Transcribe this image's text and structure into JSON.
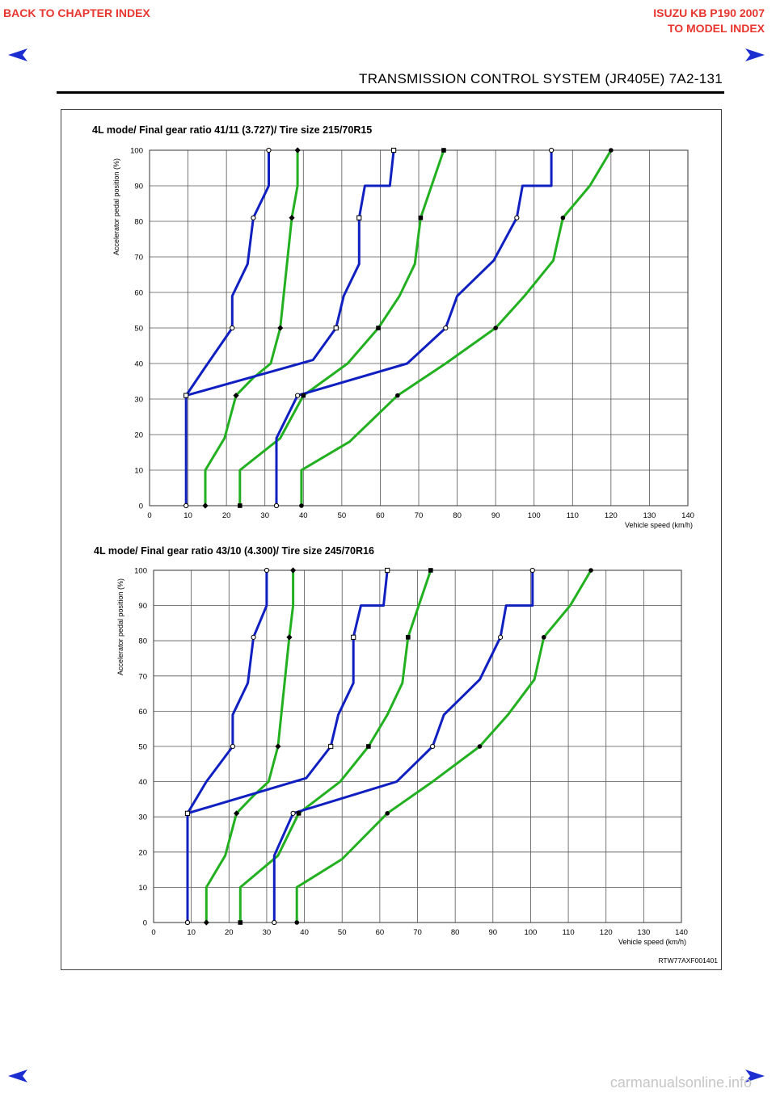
{
  "header": {
    "back_link": "BACK TO CHAPTER INDEX",
    "model_title": "ISUZU KB P190 2007",
    "model_index": "TO MODEL INDEX",
    "section_title": "TRANSMISSION CONTROL SYSTEM (JR405E)   7A2-131"
  },
  "figure_code": "RTW77AXF001401",
  "watermark": "carmanualsonline.info",
  "colors": {
    "shift_line_up": "#1020c0",
    "shift_line_down": "#22b020",
    "nav_arrow": "#1c2ed0"
  },
  "chart_data": [
    {
      "type": "line",
      "title": "4L mode/ Final gear ratio 41/11 (3.727)/ Tire size 215/70R15",
      "xlabel": "Vehicle speed (km/h)",
      "ylabel": "Accelerator pedal position (%)",
      "xlim": [
        0,
        140
      ],
      "ylim": [
        0,
        100
      ],
      "xticks": [
        "0",
        "10",
        "20",
        "30",
        "40",
        "50",
        "60",
        "70",
        "80",
        "90",
        "100",
        "110",
        "120",
        "130",
        "140"
      ],
      "yticks": [
        "0",
        "10",
        "20",
        "30",
        "40",
        "50",
        "60",
        "70",
        "80",
        "90",
        "100"
      ],
      "grid": true,
      "series": [
        {
          "color": "blue",
          "marker": "open-circle",
          "points": [
            [
              9.5,
              0
            ],
            [
              9.5,
              31
            ],
            [
              14.5,
              39
            ],
            [
              21.5,
              50
            ],
            [
              21.5,
              59
            ],
            [
              25.5,
              68
            ],
            [
              27,
              81
            ],
            [
              31,
              90
            ],
            [
              31,
              100
            ]
          ]
        },
        {
          "color": "green",
          "marker": "diamond",
          "points": [
            [
              14.5,
              0
            ],
            [
              14.5,
              10
            ],
            [
              19.5,
              19
            ],
            [
              22.5,
              31
            ],
            [
              27,
              36
            ],
            [
              31.5,
              40
            ],
            [
              34,
              50
            ],
            [
              37,
              81
            ],
            [
              38.5,
              90
            ],
            [
              38.5,
              100
            ]
          ]
        },
        {
          "color": "blue",
          "marker": "open-square",
          "points": [
            [
              9.5,
              31
            ],
            [
              42.5,
              41
            ],
            [
              48.5,
              50
            ],
            [
              50.5,
              59
            ],
            [
              54.5,
              68
            ],
            [
              54.5,
              81
            ],
            [
              56,
              90
            ],
            [
              62.5,
              90
            ],
            [
              63.5,
              100
            ]
          ]
        },
        {
          "color": "green",
          "marker": "square",
          "points": [
            [
              23.5,
              0
            ],
            [
              23.5,
              10
            ],
            [
              34,
              19
            ],
            [
              40,
              31
            ],
            [
              51.5,
              40
            ],
            [
              59.5,
              50
            ],
            [
              65,
              59
            ],
            [
              69,
              68
            ],
            [
              70.5,
              81
            ],
            [
              76.5,
              100
            ]
          ]
        },
        {
          "color": "blue",
          "marker": "open-circle",
          "points": [
            [
              33,
              0
            ],
            [
              33,
              19
            ],
            [
              38.5,
              31
            ],
            [
              67,
              40
            ],
            [
              77,
              50
            ],
            [
              80,
              59
            ],
            [
              89.5,
              69
            ],
            [
              95.5,
              81
            ],
            [
              97,
              90
            ],
            [
              104.5,
              90
            ],
            [
              104.5,
              100
            ]
          ]
        },
        {
          "color": "green",
          "marker": "circle",
          "points": [
            [
              39.5,
              0
            ],
            [
              39.5,
              10
            ],
            [
              52,
              18
            ],
            [
              64.5,
              31
            ],
            [
              77,
              40
            ],
            [
              90,
              50
            ],
            [
              97.5,
              59
            ],
            [
              105,
              69
            ],
            [
              107.5,
              81
            ],
            [
              114.5,
              90
            ],
            [
              120,
              100
            ]
          ]
        }
      ]
    },
    {
      "type": "line",
      "title": "4L mode/ Final gear ratio 43/10 (4.300)/ Tire size 245/70R16",
      "xlabel": "Vehicle speed (km/h)",
      "ylabel": "Accelerator pedal position (%)",
      "xlim": [
        0,
        140
      ],
      "ylim": [
        0,
        100
      ],
      "xticks": [
        "0",
        "10",
        "20",
        "30",
        "40",
        "50",
        "60",
        "70",
        "80",
        "90",
        "100",
        "110",
        "120",
        "130",
        "140"
      ],
      "yticks": [
        "0",
        "10",
        "20",
        "30",
        "40",
        "50",
        "60",
        "70",
        "80",
        "90",
        "100"
      ],
      "grid": true,
      "series": [
        {
          "color": "blue",
          "marker": "open-circle",
          "points": [
            [
              9,
              0
            ],
            [
              9,
              31
            ],
            [
              14,
              40
            ],
            [
              21,
              50
            ],
            [
              21,
              59
            ],
            [
              25,
              68
            ],
            [
              26.5,
              81
            ],
            [
              30,
              90
            ],
            [
              30,
              100
            ]
          ]
        },
        {
          "color": "green",
          "marker": "diamond",
          "points": [
            [
              14,
              0
            ],
            [
              14,
              10
            ],
            [
              19,
              19
            ],
            [
              22,
              31
            ],
            [
              26.5,
              36
            ],
            [
              30.5,
              40
            ],
            [
              33,
              50
            ],
            [
              36,
              81
            ],
            [
              37,
              90
            ],
            [
              37,
              100
            ]
          ]
        },
        {
          "color": "blue",
          "marker": "open-square",
          "points": [
            [
              9,
              31
            ],
            [
              40.5,
              41
            ],
            [
              47,
              50
            ],
            [
              49,
              59
            ],
            [
              53,
              68
            ],
            [
              53,
              81
            ],
            [
              55,
              90
            ],
            [
              61,
              90
            ],
            [
              62,
              100
            ]
          ]
        },
        {
          "color": "green",
          "marker": "square",
          "points": [
            [
              23,
              0
            ],
            [
              23,
              10
            ],
            [
              33,
              19
            ],
            [
              38.5,
              31
            ],
            [
              49.5,
              40
            ],
            [
              57,
              50
            ],
            [
              62,
              59
            ],
            [
              66,
              68
            ],
            [
              67.5,
              81
            ],
            [
              73.5,
              100
            ]
          ]
        },
        {
          "color": "blue",
          "marker": "open-circle",
          "points": [
            [
              32,
              0
            ],
            [
              32,
              19
            ],
            [
              37,
              31
            ],
            [
              64.5,
              40
            ],
            [
              74,
              50
            ],
            [
              77,
              59
            ],
            [
              86.5,
              69
            ],
            [
              92,
              81
            ],
            [
              93.5,
              90
            ],
            [
              100.5,
              90
            ],
            [
              100.5,
              100
            ]
          ]
        },
        {
          "color": "green",
          "marker": "circle",
          "points": [
            [
              38,
              0
            ],
            [
              38,
              10
            ],
            [
              50,
              18
            ],
            [
              62,
              31
            ],
            [
              74,
              40
            ],
            [
              86.5,
              50
            ],
            [
              94,
              59
            ],
            [
              101,
              69
            ],
            [
              103.5,
              81
            ],
            [
              110.5,
              90
            ],
            [
              116,
              100
            ]
          ]
        }
      ]
    }
  ]
}
